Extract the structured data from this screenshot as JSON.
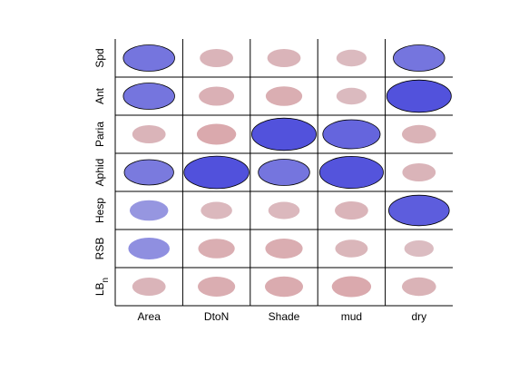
{
  "chart_data": {
    "type": "heatmap",
    "title": "",
    "xlabel": "",
    "ylabel": "",
    "columns": [
      "Area",
      "DtoN",
      "Shade",
      "mud",
      "dry"
    ],
    "rows": [
      {
        "label": "Spd",
        "sub": ""
      },
      {
        "label": "Ant",
        "sub": ""
      },
      {
        "label": "Paria",
        "sub": ""
      },
      {
        "label": "Aphid",
        "sub": ""
      },
      {
        "label": "Hesp",
        "sub": ""
      },
      {
        "label": "RSB",
        "sub": ""
      },
      {
        "label": "LB",
        "sub": "n"
      }
    ],
    "value_range": [
      -1,
      1
    ],
    "values": [
      [
        0.65,
        -0.2,
        -0.2,
        -0.12,
        0.65
      ],
      [
        0.65,
        -0.25,
        -0.28,
        -0.12,
        0.98
      ],
      [
        -0.2,
        -0.35,
        0.98,
        0.8,
        -0.22
      ],
      [
        0.6,
        0.99,
        0.65,
        0.96,
        -0.2
      ],
      [
        0.33,
        -0.15,
        -0.15,
        -0.2,
        0.88
      ],
      [
        0.4,
        -0.28,
        -0.3,
        -0.18,
        -0.1
      ],
      [
        -0.2,
        -0.3,
        -0.32,
        -0.35,
        -0.22
      ]
    ],
    "colors": {
      "positive": "#5050dc",
      "negative": "#d87878",
      "neutral": "#dcdce4",
      "outline": "#000000"
    }
  }
}
